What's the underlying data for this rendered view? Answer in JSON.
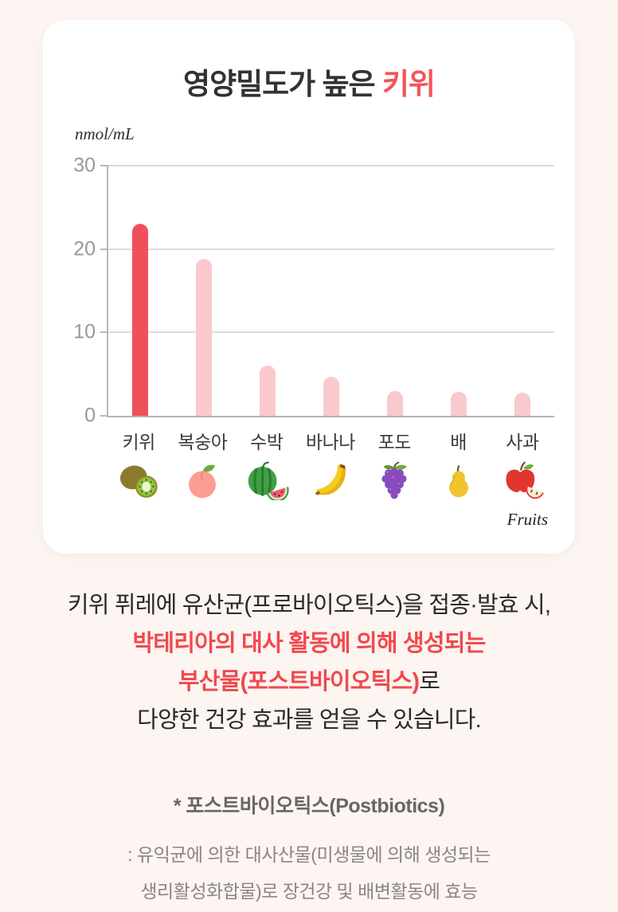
{
  "page": {
    "background_color": "#fcf5f1",
    "card_color": "#ffffff",
    "accent_red": "#f2545a",
    "text_red": "#f0494e"
  },
  "title": {
    "prefix": "영양밀도가 높은 ",
    "highlight": "키위"
  },
  "chart_data": {
    "type": "bar",
    "title": "영양밀도가 높은 키위",
    "unit_label": "nmol/mL",
    "xlabel": "Fruits",
    "ylabel": "nmol/mL",
    "categories": [
      "키위",
      "복숭아",
      "수박",
      "바나나",
      "포도",
      "배",
      "사과"
    ],
    "values": [
      23,
      18.8,
      6,
      4.7,
      3,
      2.9,
      2.8
    ],
    "icons": [
      "kiwi-icon",
      "peach-icon",
      "watermelon-icon",
      "banana-icon",
      "grape-icon",
      "pear-icon",
      "apple-icon"
    ],
    "bar_colors": [
      "#f0505a",
      "#f9c9cd",
      "#f9c9cd",
      "#f9c9cd",
      "#f9c9cd",
      "#f9c9cd",
      "#f9c9cd"
    ],
    "highlight_index": 0,
    "ylim": [
      0,
      30
    ],
    "yticks": [
      0,
      10,
      20,
      30
    ],
    "grid": true,
    "legend": "none"
  },
  "description": {
    "line1": "키위 퓌레에 유산균(프로바이오틱스)을 접종·발효 시,",
    "line2": "박테리아의 대사 활동에 의해 생성되는",
    "line3_red": "부산물(포스트바이오틱스)",
    "line3_black": "로",
    "line4": "다양한 건강 효과를 얻을 수 있습니다."
  },
  "footnote": {
    "title": "* 포스트바이오틱스(Postbiotics)",
    "line1": ": 유익균에 의한 대사산물(미생물에 의해 생성되는",
    "line2": "생리활성화합물)로 장건강 및 배변활동에 효능"
  }
}
